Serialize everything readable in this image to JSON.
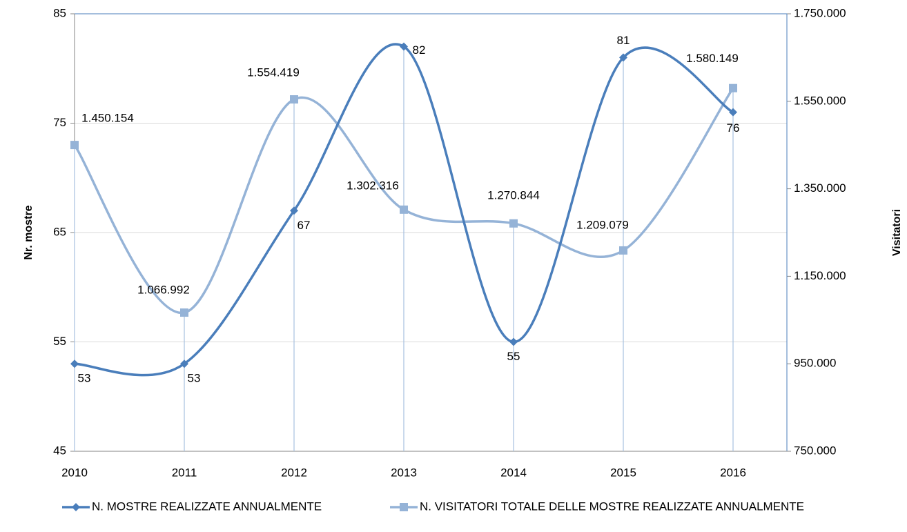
{
  "chart_data": {
    "type": "line",
    "categories": [
      "2010",
      "2011",
      "2012",
      "2013",
      "2014",
      "2015",
      "2016"
    ],
    "series": [
      {
        "name": "N. MOSTRE REALIZZATE ANNUALMENTE",
        "color": "#4a7ebb",
        "marker": "diamond",
        "values": [
          53,
          53,
          67,
          82,
          55,
          81,
          76
        ]
      },
      {
        "name": "N. VISITATORI TOTALE DELLE MOSTRE REALIZZATE ANNUALMENTE",
        "color": "#95b3d7",
        "marker": "square",
        "axis": "y2",
        "values": [
          1450154,
          1066992,
          1554419,
          1302316,
          1270844,
          1209079,
          1580149
        ],
        "value_labels": [
          "1.450.154",
          "1.066.992",
          "1.554.419",
          "1.302.316",
          "1.270.844",
          "1.209.079",
          "1.580.149"
        ]
      }
    ],
    "ylabel": "Nr. mostre",
    "y2label": "Visitatori",
    "ylim": [
      45,
      85
    ],
    "yticks": [
      45,
      55,
      65,
      75,
      85
    ],
    "y2lim": [
      750000,
      1750000
    ],
    "y2ticks": [
      {
        "value": 750000,
        "label": "750.000"
      },
      {
        "value": 950000,
        "label": "950.000"
      },
      {
        "value": 1150000,
        "label": "1.150.000"
      },
      {
        "value": 1350000,
        "label": "1.350.000"
      },
      {
        "value": 1550000,
        "label": "1.550.000"
      },
      {
        "value": 1750000,
        "label": "1.750.000"
      }
    ],
    "grid": true,
    "legend": "bottom"
  }
}
